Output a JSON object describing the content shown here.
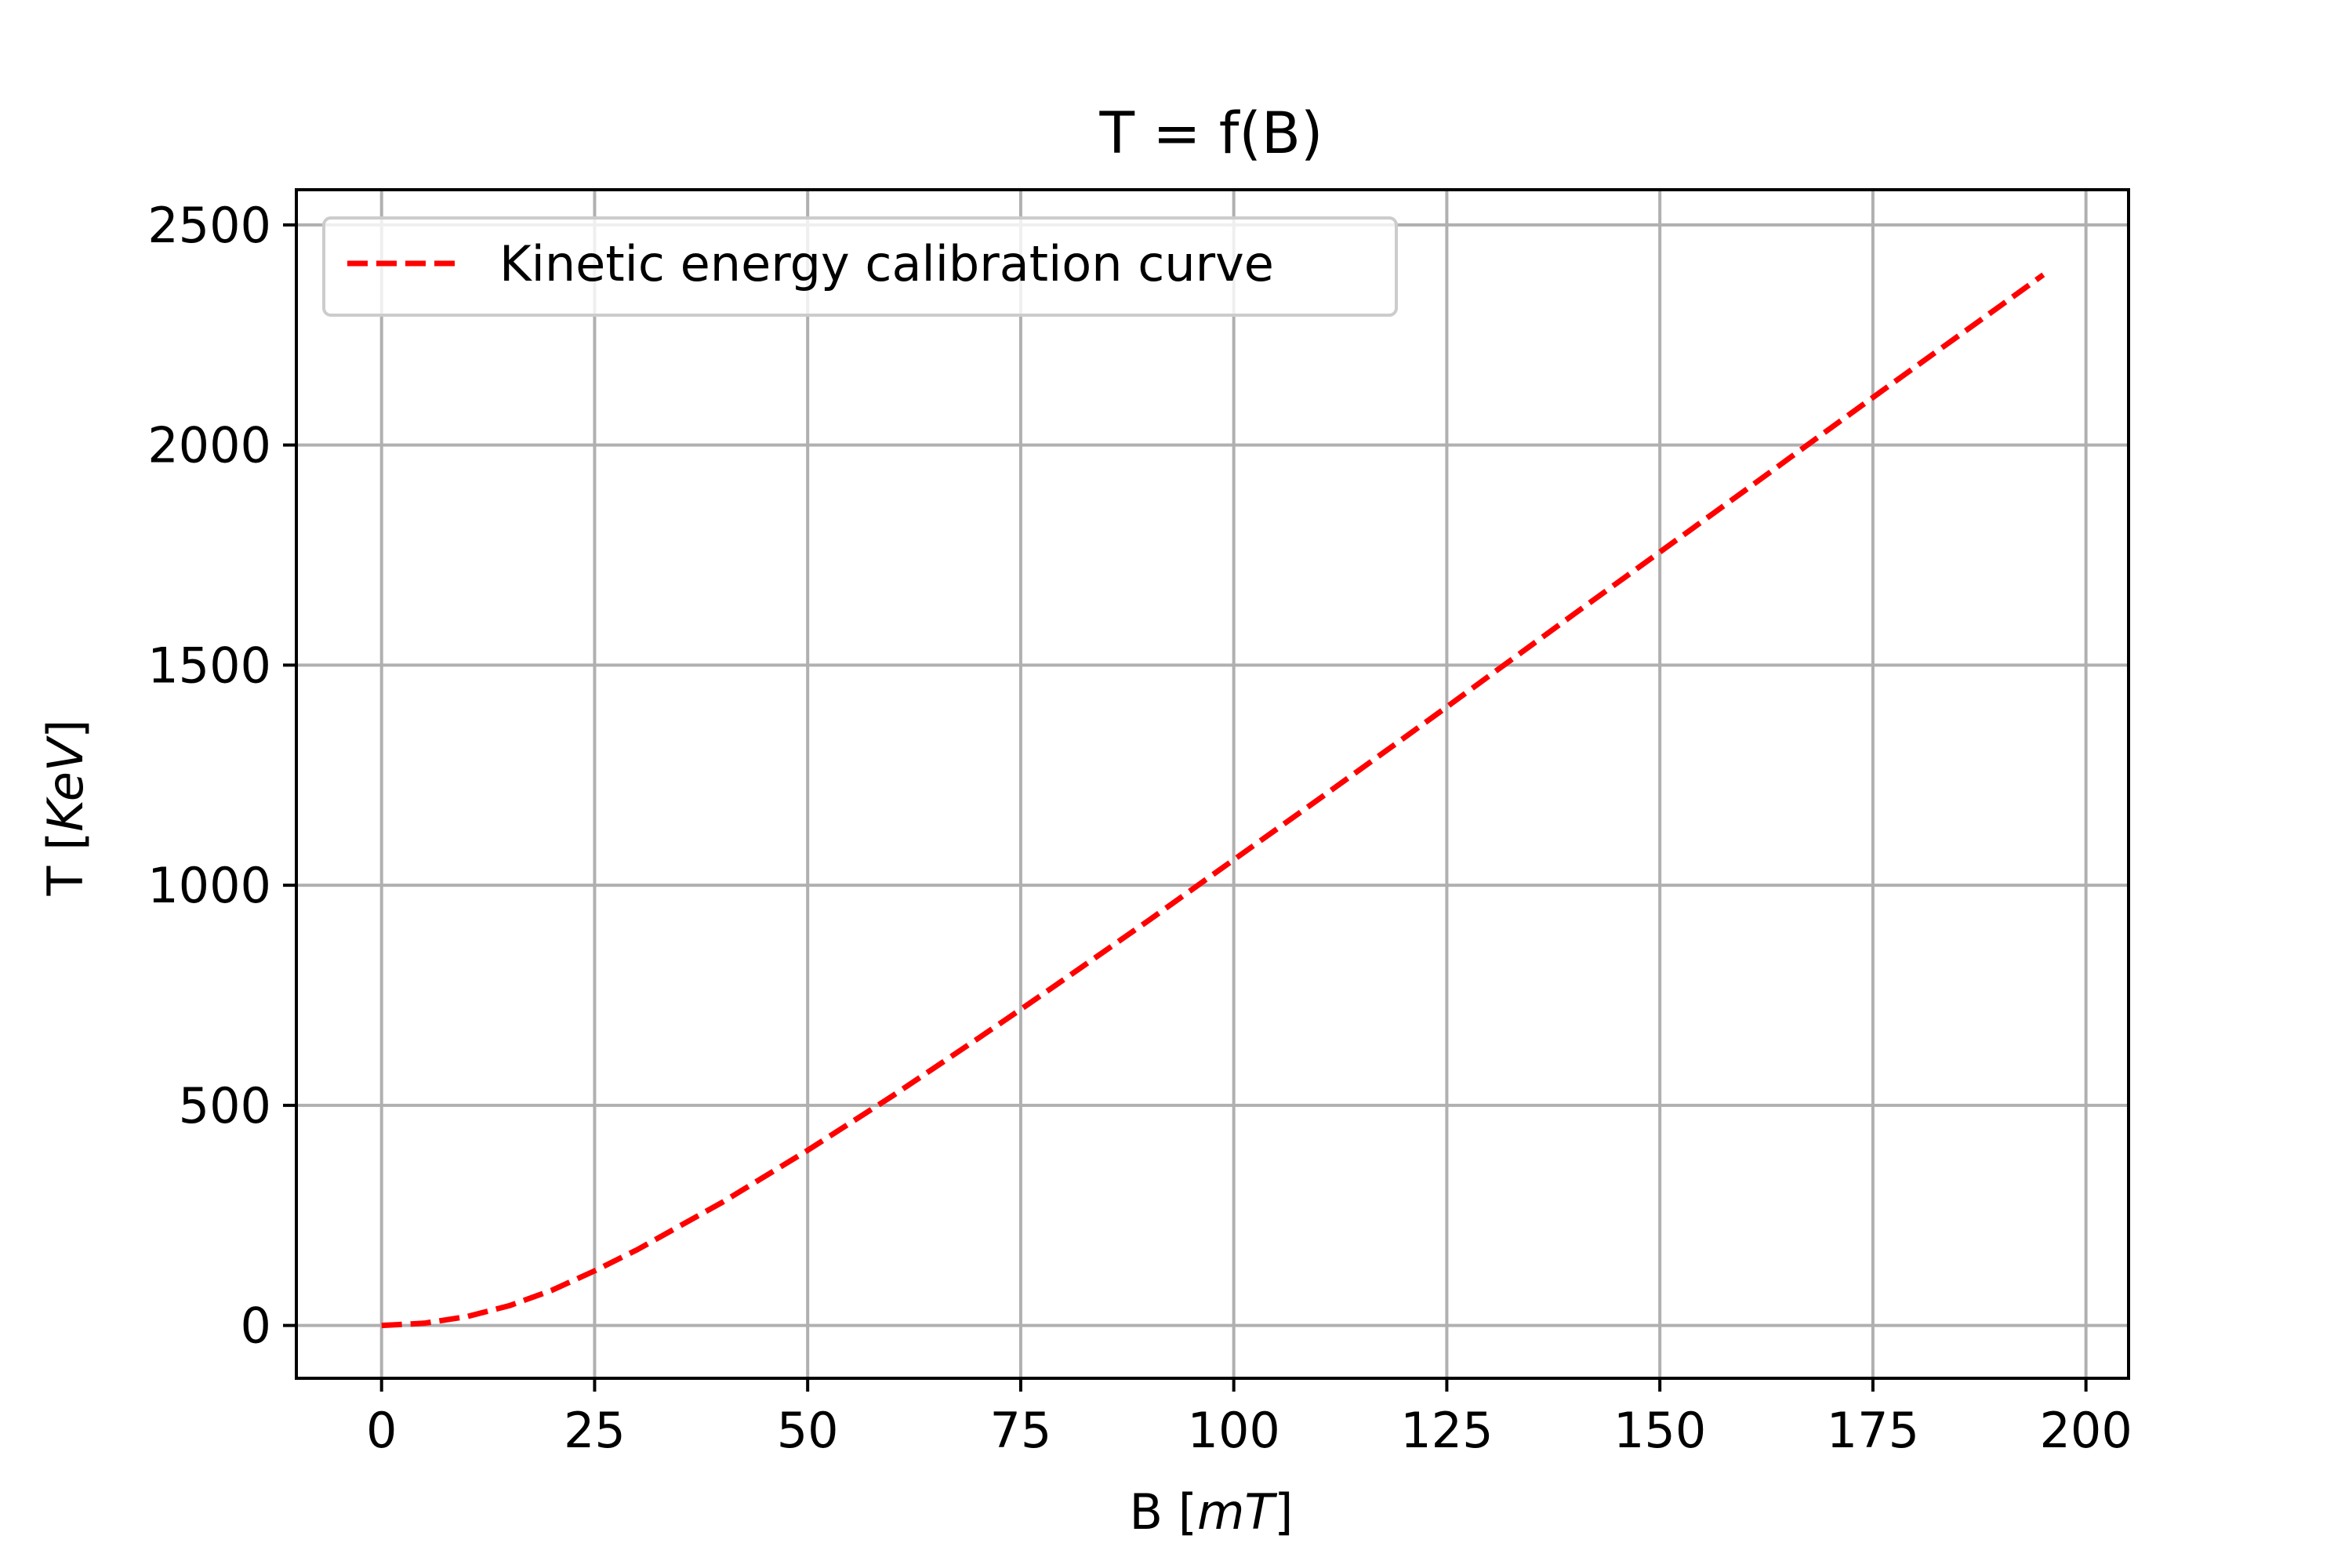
{
  "chart_data": {
    "type": "line",
    "title": "T = f(B)",
    "xlabel": "B [",
    "xlabel_unit": "mT",
    "xlabel_close": "]",
    "ylabel": "T [",
    "ylabel_unit": "KeV",
    "ylabel_close": "]",
    "xlim": [
      -10,
      205
    ],
    "ylim": [
      -120,
      2580
    ],
    "xticks": [
      0,
      25,
      50,
      75,
      100,
      125,
      150,
      175,
      200
    ],
    "yticks": [
      0,
      500,
      1000,
      1500,
      2000,
      2500
    ],
    "grid": true,
    "legend_position": "top-left",
    "series": [
      {
        "name": "Kinetic energy calibration curve",
        "color": "#ff0000",
        "line_style": "dashed",
        "x": [
          0,
          5,
          10,
          15,
          20,
          25,
          30,
          40,
          50,
          60,
          70,
          75,
          80,
          90,
          100,
          110,
          120,
          125,
          130,
          140,
          150,
          160,
          170,
          175,
          180,
          190,
          195
        ],
        "y": [
          0,
          5,
          20,
          45,
          80,
          124,
          172,
          280,
          398,
          522,
          652,
          718,
          785,
          920,
          1058,
          1196,
          1335,
          1405,
          1476,
          1617,
          1757,
          1897,
          2038,
          2108,
          2178,
          2317,
          2387
        ]
      }
    ]
  }
}
